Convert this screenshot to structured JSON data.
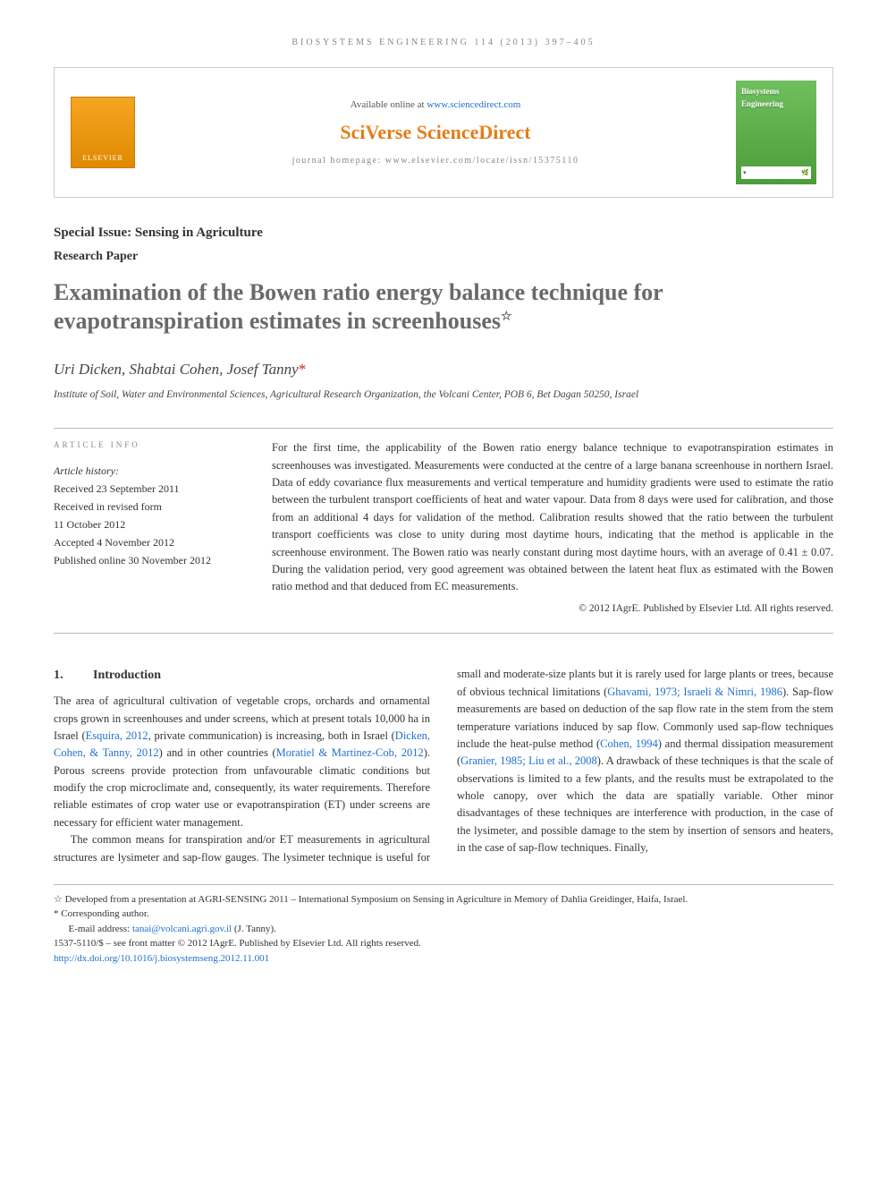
{
  "header": {
    "running_head": "BIOSYSTEMS ENGINEERING 114 (2013) 397–405",
    "available_prefix": "Available online at ",
    "available_link": "www.sciencedirect.com",
    "brand": "SciVerse ScienceDirect",
    "homepage_prefix": "journal homepage: ",
    "homepage_url": "www.elsevier.com/locate/issn/15375110",
    "elsevier_label": "ELSEVIER",
    "journal_cover_title": "Biosystems Engineering"
  },
  "front": {
    "special_issue": "Special Issue: Sensing in Agriculture",
    "paper_type": "Research Paper",
    "title": "Examination of the Bowen ratio energy balance technique for evapotranspiration estimates in screenhouses",
    "title_note_marker": "☆",
    "authors_html": "Uri Dicken, Shabtai Cohen, Josef Tanny",
    "corr_marker": "*",
    "affiliation": "Institute of Soil, Water and Environmental Sciences, Agricultural Research Organization, the Volcani Center, POB 6, Bet Dagan 50250, Israel"
  },
  "article_info": {
    "heading": "ARTICLE INFO",
    "history_label": "Article history:",
    "lines": [
      "Received 23 September 2011",
      "Received in revised form",
      "11 October 2012",
      "Accepted 4 November 2012",
      "Published online 30 November 2012"
    ]
  },
  "abstract": {
    "text": "For the first time, the applicability of the Bowen ratio energy balance technique to evapotranspiration estimates in screenhouses was investigated. Measurements were conducted at the centre of a large banana screenhouse in northern Israel. Data of eddy covariance flux measurements and vertical temperature and humidity gradients were used to estimate the ratio between the turbulent transport coefficients of heat and water vapour. Data from 8 days were used for calibration, and those from an additional 4 days for validation of the method. Calibration results showed that the ratio between the turbulent transport coefficients was close to unity during most daytime hours, indicating that the method is applicable in the screenhouse environment. The Bowen ratio was nearly constant during most daytime hours, with an average of 0.41 ± 0.07. During the validation period, very good agreement was obtained between the latent heat flux as estimated with the Bowen ratio method and that deduced from EC measurements.",
    "copyright": "© 2012 IAgrE. Published by Elsevier Ltd. All rights reserved."
  },
  "body": {
    "sec_num": "1.",
    "sec_title": "Introduction",
    "p1_a": "The area of agricultural cultivation of vegetable crops, orchards and ornamental crops grown in screenhouses and under screens, which at present totals 10,000 ha in Israel (",
    "p1_ref1": "Esquira, 2012",
    "p1_b": ", private communication) is increasing, both in Israel (",
    "p1_ref2": "Dicken, Cohen, & Tanny, 2012",
    "p1_c": ") and in other countries (",
    "p1_ref3": "Moratiel & Martinez-Cob, 2012",
    "p1_d": "). Porous screens provide protection from unfavourable climatic conditions but modify the crop microclimate and, consequently, its water requirements. Therefore reliable estimates of crop water use or evapotranspiration (ET) under screens are necessary for efficient water management.",
    "p2_a": "The common means for transpiration and/or ET measurements in agricultural structures are lysimeter and sap-flow gauges. The lysimeter technique is useful for small and moderate-size plants but it is rarely used for large plants or trees, because of obvious technical limitations (",
    "p2_ref1": "Ghavami, 1973; Israeli & Nimri, 1986",
    "p2_b": "). Sap-flow measurements are based on deduction of the sap flow rate in the stem from the stem temperature variations induced by sap flow. Commonly used sap-flow techniques include the heat-pulse method (",
    "p2_ref2": "Cohen, 1994",
    "p2_c": ") and thermal dissipation measurement (",
    "p2_ref3": "Granier, 1985; Liu et al., 2008",
    "p2_d": "). A drawback of these techniques is that the scale of observations is limited to a few plants, and the results must be extrapolated to the whole canopy, over which the data are spatially variable. Other minor disadvantages of these techniques are interference with production, in the case of the lysimeter, and possible damage to the stem by insertion of sensors and heaters, in the case of sap-flow techniques. Finally,"
  },
  "footnotes": {
    "star_note": "Developed from a presentation at AGRI-SENSING 2011 – International Symposium on Sensing in Agriculture in Memory of Dahlia Greidinger, Haifa, Israel.",
    "corr_label": "Corresponding author.",
    "email_label": "E-mail address: ",
    "email": "tanai@volcani.agri.gov.il",
    "email_suffix": " (J. Tanny).",
    "issn_line": "1537-5110/$ – see front matter © 2012 IAgrE. Published by Elsevier Ltd. All rights reserved.",
    "doi": "http://dx.doi.org/10.1016/j.biosystemseng.2012.11.001"
  },
  "colors": {
    "link": "#2070d0",
    "title_grey": "#6a6a6a",
    "rule": "#bbbbbb",
    "elsevier_grad_top": "#f5a623",
    "elsevier_grad_bottom": "#e08900",
    "cover_grad_top": "#6fbf5f",
    "cover_grad_bottom": "#4a9e3a"
  }
}
